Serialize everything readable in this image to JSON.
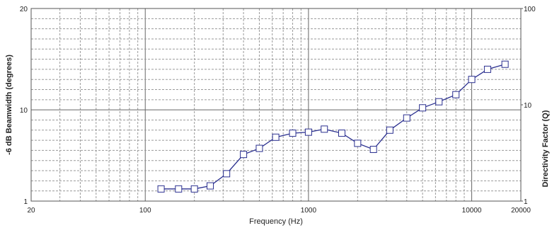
{
  "chart_data": {
    "type": "line",
    "xlabel": "Frequency (Hz)",
    "ylabel": "-6 dB Beamwidth (degrees)",
    "y2label": "Directivity Factor (Q)",
    "x_scale": "log",
    "xlim": [
      20,
      20000
    ],
    "ylim": [
      1,
      20
    ],
    "y2lim": [
      1,
      100
    ],
    "grid": true,
    "x_tick_labels": [
      "20",
      "100",
      "1000",
      "10000",
      "20000"
    ],
    "y_tick_labels": [
      "1",
      "10",
      "20"
    ],
    "y2_tick_labels": [
      "1",
      "10",
      "100"
    ],
    "series": [
      {
        "color": "#2a2f8f",
        "marker": "square",
        "x": [
          125,
          160,
          200,
          250,
          315,
          400,
          500,
          630,
          800,
          1000,
          1250,
          1600,
          2000,
          2500,
          3150,
          4000,
          5000,
          6300,
          8000,
          10000,
          12500,
          16000
        ],
        "y": [
          2.2,
          2.2,
          2.2,
          2.5,
          3.7,
          5.6,
          6.2,
          7.3,
          7.7,
          7.8,
          8.1,
          7.7,
          6.7,
          6.1,
          8.0,
          9.2,
          10.2,
          10.8,
          11.5,
          13.0,
          14.0,
          14.5
        ]
      }
    ]
  }
}
